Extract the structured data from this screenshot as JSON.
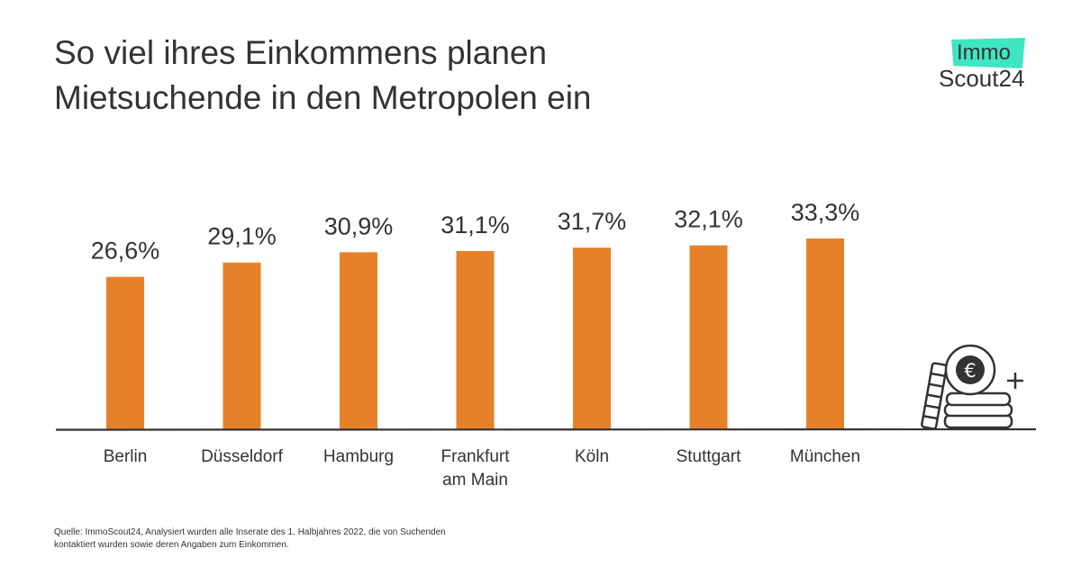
{
  "header": {
    "title_line1": "So viel ihres Einkommens planen",
    "title_line2": "Mietsuchende in den Metropolen ein"
  },
  "logo": {
    "line1": "Immo",
    "line2": "Scout24",
    "accent_color": "#3ee6c1"
  },
  "chart_data": {
    "type": "bar",
    "categories": [
      [
        "Berlin"
      ],
      [
        "Düsseldorf"
      ],
      [
        "Hamburg"
      ],
      [
        "Frankfurt",
        "am Main"
      ],
      [
        "Köln"
      ],
      [
        "Stuttgart"
      ],
      [
        "München"
      ]
    ],
    "values": [
      26.6,
      29.1,
      30.9,
      31.1,
      31.7,
      32.1,
      33.3
    ],
    "value_labels": [
      "26,6%",
      "29,1%",
      "30,9%",
      "31,1%",
      "31,7%",
      "32,1%",
      "33,3%"
    ],
    "unit": "%",
    "ylim": [
      0,
      33.3
    ],
    "grid": false,
    "bar_color": "#e6812a"
  },
  "decoration": {
    "icon": "euro-coins-icon"
  },
  "footer": {
    "source_line1": "Quelle: ImmoScout24, Analysiert wurden alle Inserate des 1. Halbjahres 2022, die von Suchenden",
    "source_line2": "kontaktiert wurden sowie deren Angaben zum Einkommen."
  }
}
